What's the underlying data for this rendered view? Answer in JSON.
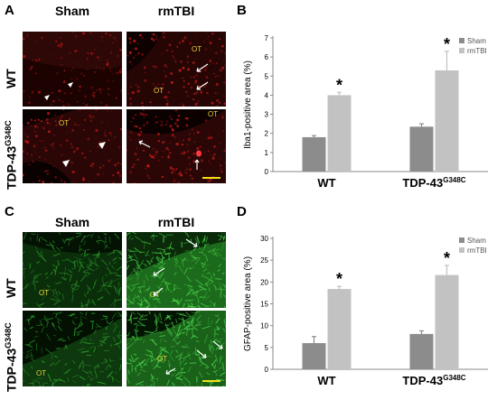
{
  "panels": {
    "A": {
      "letter": "A",
      "col_labels": [
        "Sham",
        "rmTBI"
      ],
      "row_label_wt": "WT",
      "row_label_tdp_base": "TDP-43",
      "row_label_tdp_sup": "G348C",
      "ot_label": "OT",
      "stain_color": "#d81818",
      "bg_color": "#1c0302"
    },
    "C": {
      "letter": "C",
      "col_labels": [
        "Sham",
        "rmTBI"
      ],
      "row_label_wt": "WT",
      "row_label_tdp_base": "TDP-43",
      "row_label_tdp_sup": "G348C",
      "ot_label": "OT",
      "stain_color": "#39c43a",
      "bg_color": "#041203"
    },
    "B": {
      "letter": "B"
    },
    "D": {
      "letter": "D"
    }
  },
  "chart_data": [
    {
      "type": "bar",
      "panel": "B",
      "categories": [
        "WT",
        "TDP-43G348C"
      ],
      "category_base": [
        "WT",
        "TDP-43"
      ],
      "category_sup": [
        "",
        "G348C"
      ],
      "series": [
        {
          "name": "Sham",
          "color": "#8c8c8c",
          "values": [
            1.8,
            2.35
          ],
          "errors": [
            0.08,
            0.15
          ]
        },
        {
          "name": "rmTBI",
          "color": "#c2c2c2",
          "values": [
            4.0,
            5.3
          ],
          "errors": [
            0.15,
            1.0
          ]
        }
      ],
      "ylabel": "Iba1-positive area (%)",
      "ylim": [
        0,
        7
      ],
      "yticks": [
        0,
        1,
        2,
        3,
        4,
        5,
        6,
        7
      ],
      "significance": [
        "*",
        "*"
      ],
      "legend": "top-right"
    },
    {
      "type": "bar",
      "panel": "D",
      "categories": [
        "WT",
        "TDP-43G348C"
      ],
      "category_base": [
        "WT",
        "TDP-43"
      ],
      "category_sup": [
        "",
        "G348C"
      ],
      "series": [
        {
          "name": "Sham",
          "color": "#8c8c8c",
          "values": [
            6.0,
            8.1
          ],
          "errors": [
            1.5,
            0.7
          ]
        },
        {
          "name": "rmTBI",
          "color": "#c2c2c2",
          "values": [
            18.4,
            21.6
          ],
          "errors": [
            0.6,
            2.2
          ]
        }
      ],
      "ylabel": "GFAP-positive area (%)",
      "ylim": [
        0,
        30
      ],
      "yticks": [
        0,
        5,
        10,
        15,
        20,
        25,
        30
      ],
      "significance": [
        "*",
        "*"
      ],
      "legend": "top-right"
    }
  ]
}
